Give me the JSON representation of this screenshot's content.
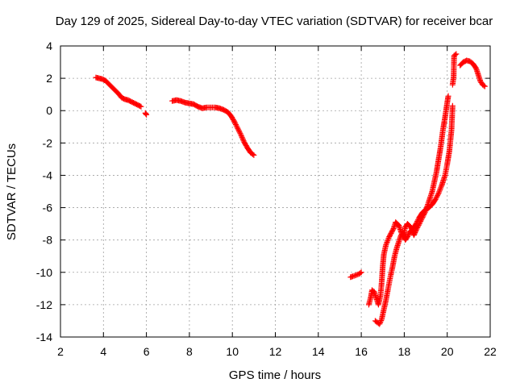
{
  "chart_data": {
    "type": "scatter",
    "title": "Day 129 of 2025, Sidereal Day-to-day VTEC variation (SDTVAR) for receiver bcar",
    "xlabel": "GPS time / hours",
    "ylabel": "SDTVAR / TECUs",
    "xlim": [
      2,
      22
    ],
    "ylim": [
      -14,
      4
    ],
    "xticks": [
      2,
      4,
      6,
      8,
      10,
      12,
      14,
      16,
      18,
      20,
      22
    ],
    "yticks": [
      -14,
      -12,
      -10,
      -8,
      -6,
      -4,
      -2,
      0,
      2,
      4
    ],
    "grid": true,
    "marker": "+",
    "color": "#ff0000",
    "series": [
      {
        "name": "bcar",
        "segments": [
          [
            [
              3.65,
              2.05
            ],
            [
              3.8,
              2.0
            ],
            [
              3.95,
              1.95
            ],
            [
              4.1,
              1.85
            ],
            [
              4.25,
              1.65
            ],
            [
              4.4,
              1.45
            ],
            [
              4.55,
              1.25
            ],
            [
              4.7,
              1.05
            ],
            [
              4.85,
              0.8
            ],
            [
              5.0,
              0.7
            ],
            [
              5.15,
              0.65
            ],
            [
              5.3,
              0.55
            ],
            [
              5.45,
              0.45
            ],
            [
              5.6,
              0.35
            ],
            [
              5.75,
              0.25
            ]
          ],
          [
            [
              5.95,
              -0.15
            ],
            [
              6.0,
              -0.25
            ]
          ],
          [
            [
              7.2,
              0.6
            ],
            [
              7.4,
              0.65
            ],
            [
              7.6,
              0.6
            ],
            [
              7.8,
              0.5
            ],
            [
              8.0,
              0.45
            ],
            [
              8.2,
              0.4
            ],
            [
              8.4,
              0.25
            ],
            [
              8.6,
              0.15
            ],
            [
              8.8,
              0.2
            ],
            [
              9.0,
              0.2
            ],
            [
              9.2,
              0.2
            ],
            [
              9.4,
              0.15
            ],
            [
              9.6,
              0.05
            ],
            [
              9.8,
              -0.1
            ],
            [
              9.95,
              -0.35
            ],
            [
              10.1,
              -0.7
            ],
            [
              10.25,
              -1.1
            ],
            [
              10.4,
              -1.5
            ],
            [
              10.55,
              -1.95
            ],
            [
              10.7,
              -2.3
            ],
            [
              10.85,
              -2.6
            ],
            [
              11.0,
              -2.75
            ]
          ],
          [
            [
              15.5,
              -10.3
            ],
            [
              15.6,
              -10.25
            ],
            [
              15.9,
              -10.1
            ],
            [
              16.0,
              -10.0
            ]
          ],
          [
            [
              16.35,
              -12.0
            ],
            [
              16.45,
              -11.5
            ],
            [
              16.5,
              -11.1
            ],
            [
              16.6,
              -11.2
            ],
            [
              16.7,
              -11.6
            ],
            [
              16.8,
              -12.0
            ],
            [
              16.9,
              -11.4
            ],
            [
              16.95,
              -10.6
            ],
            [
              17.0,
              -9.6
            ],
            [
              17.05,
              -8.9
            ],
            [
              17.15,
              -8.3
            ],
            [
              17.3,
              -7.8
            ],
            [
              17.5,
              -7.3
            ],
            [
              17.6,
              -6.9
            ],
            [
              17.75,
              -7.1
            ],
            [
              17.85,
              -7.5
            ],
            [
              17.95,
              -7.8
            ],
            [
              18.05,
              -7.2
            ],
            [
              18.15,
              -7.0
            ],
            [
              18.3,
              -7.2
            ],
            [
              18.45,
              -7.7
            ],
            [
              18.55,
              -7.4
            ],
            [
              18.7,
              -7.0
            ],
            [
              18.85,
              -6.6
            ],
            [
              19.0,
              -6.2
            ],
            [
              19.1,
              -5.8
            ],
            [
              19.2,
              -5.4
            ],
            [
              19.3,
              -5.0
            ],
            [
              19.4,
              -4.4
            ],
            [
              19.5,
              -3.8
            ],
            [
              19.6,
              -3.0
            ],
            [
              19.7,
              -2.2
            ],
            [
              19.8,
              -1.2
            ],
            [
              19.9,
              -0.4
            ],
            [
              20.0,
              0.5
            ],
            [
              20.05,
              0.9
            ]
          ],
          [
            [
              16.65,
              -13.0
            ],
            [
              16.75,
              -13.1
            ],
            [
              16.85,
              -13.2
            ],
            [
              16.95,
              -12.9
            ],
            [
              17.05,
              -12.3
            ],
            [
              17.15,
              -11.7
            ],
            [
              17.25,
              -11.0
            ],
            [
              17.35,
              -10.3
            ],
            [
              17.45,
              -9.7
            ],
            [
              17.55,
              -9.0
            ],
            [
              17.65,
              -8.5
            ],
            [
              17.75,
              -8.1
            ],
            [
              17.85,
              -7.7
            ],
            [
              17.95,
              -7.6
            ],
            [
              18.05,
              -8.0
            ],
            [
              18.15,
              -7.8
            ],
            [
              18.25,
              -7.5
            ],
            [
              18.35,
              -7.4
            ],
            [
              18.45,
              -7.2
            ],
            [
              18.55,
              -7.0
            ],
            [
              18.7,
              -6.6
            ],
            [
              18.85,
              -6.3
            ],
            [
              19.0,
              -6.1
            ],
            [
              19.15,
              -6.0
            ],
            [
              19.3,
              -5.8
            ],
            [
              19.45,
              -5.5
            ],
            [
              19.6,
              -5.1
            ],
            [
              19.75,
              -4.6
            ],
            [
              19.9,
              -4.0
            ],
            [
              20.0,
              -3.3
            ],
            [
              20.1,
              -2.5
            ],
            [
              20.2,
              -1.2
            ],
            [
              20.25,
              0.3
            ]
          ],
          [
            [
              20.25,
              1.6
            ],
            [
              20.3,
              2.1
            ],
            [
              20.32,
              3.4
            ],
            [
              20.42,
              3.5
            ]
          ],
          [
            [
              20.6,
              2.8
            ],
            [
              20.75,
              3.0
            ],
            [
              20.9,
              3.1
            ],
            [
              21.05,
              3.05
            ],
            [
              21.2,
              2.9
            ],
            [
              21.35,
              2.6
            ],
            [
              21.45,
              2.2
            ],
            [
              21.55,
              1.8
            ],
            [
              21.65,
              1.6
            ],
            [
              21.75,
              1.5
            ]
          ]
        ]
      }
    ]
  }
}
